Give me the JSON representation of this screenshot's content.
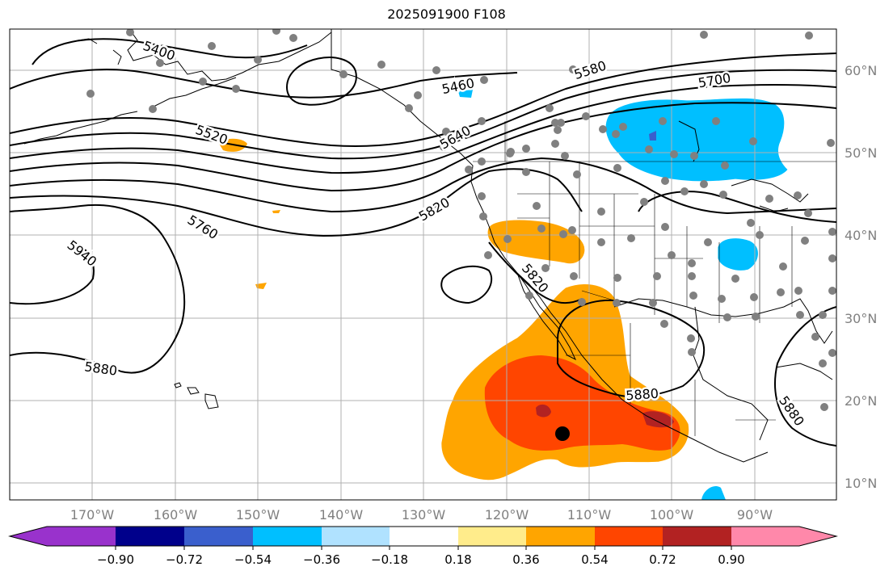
{
  "title": "2025091900 F108",
  "lon_labels": [
    "170°W",
    "160°W",
    "150°W",
    "140°W",
    "130°W",
    "120°W",
    "110°W",
    "100°W",
    "90°W"
  ],
  "lat_labels": [
    "60°N",
    "50°N",
    "40°N",
    "30°N",
    "20°N",
    "10°N"
  ],
  "contour_labels": [
    "5400",
    "5460",
    "5520",
    "5580",
    "5640",
    "5700",
    "5760",
    "5820",
    "5820",
    "5880",
    "5880",
    "5880",
    "5940"
  ],
  "colorbar": {
    "tick_labels": [
      "−0.90",
      "−0.72",
      "−0.54",
      "−0.36",
      "−0.18",
      "0.18",
      "0.36",
      "0.54",
      "0.72",
      "0.90"
    ],
    "colors": [
      "#9932cc",
      "#00008b",
      "#3a5fcd",
      "#00bfff",
      "#b0e2ff",
      "#ffffff",
      "#ffec8b",
      "#ffa500",
      "#ff4500",
      "#b22222",
      "#ff88aa"
    ]
  },
  "colors": {
    "negative_strong": "#00bfff",
    "positive_mid": "#ffa500",
    "positive_high": "#ff4500",
    "positive_max": "#b22222",
    "stations": "#808080"
  }
}
